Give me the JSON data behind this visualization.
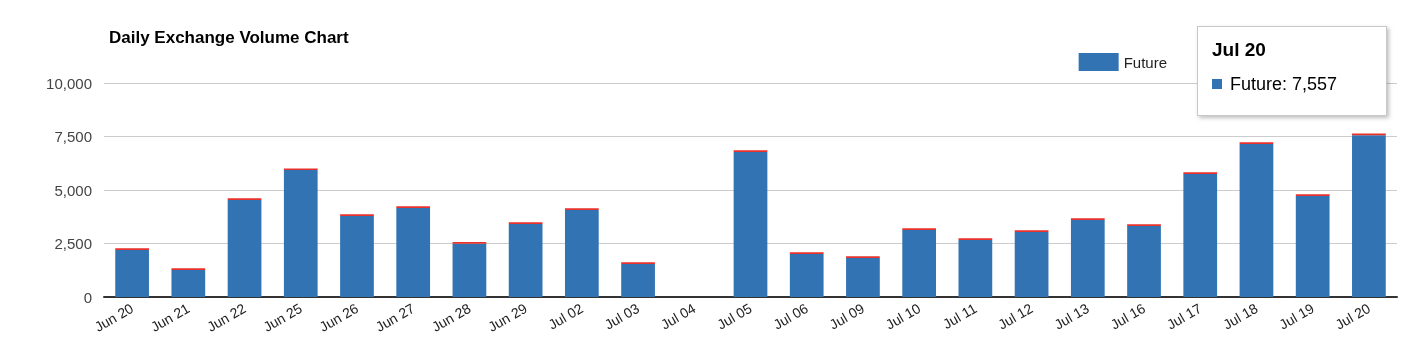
{
  "chart_data": {
    "type": "bar",
    "title": "Daily Exchange Volume Chart",
    "categories": [
      "Jun 20",
      "Jun 21",
      "Jun 22",
      "Jun 25",
      "Jun 26",
      "Jun 27",
      "Jun 28",
      "Jun 29",
      "Jul 02",
      "Jul 03",
      "Jul 04",
      "Jul 05",
      "Jul 06",
      "Jul 09",
      "Jul 10",
      "Jul 11",
      "Jul 12",
      "Jul 13",
      "Jul 16",
      "Jul 17",
      "Jul 18",
      "Jul 19",
      "Jul 20"
    ],
    "series": [
      {
        "name": "Future",
        "color": "#3274b3",
        "values": [
          2200,
          1260,
          4530,
          5930,
          3790,
          4160,
          2490,
          3410,
          4070,
          1540,
          0,
          6780,
          2010,
          1820,
          3130,
          2660,
          3040,
          3600,
          3320,
          5750,
          7150,
          4720,
          7557
        ]
      },
      {
        "color": "#e8312b",
        "values": [
          80,
          80,
          80,
          80,
          80,
          80,
          80,
          80,
          80,
          80,
          0,
          80,
          80,
          80,
          80,
          80,
          80,
          80,
          80,
          80,
          80,
          80,
          80
        ]
      }
    ],
    "stacked": true,
    "ylim": [
      0,
      10000
    ],
    "yticks": [
      0,
      {
        "value": 2500,
        "label": "2,500"
      },
      {
        "value": 5000,
        "label": "5,000"
      },
      {
        "value": 7500,
        "label": "7,500"
      },
      {
        "value": 10000,
        "label": "10,000"
      }
    ],
    "grid": "y",
    "legend": "top right",
    "annotations": [
      "Jul 20",
      "Future: 7,557"
    ]
  }
}
